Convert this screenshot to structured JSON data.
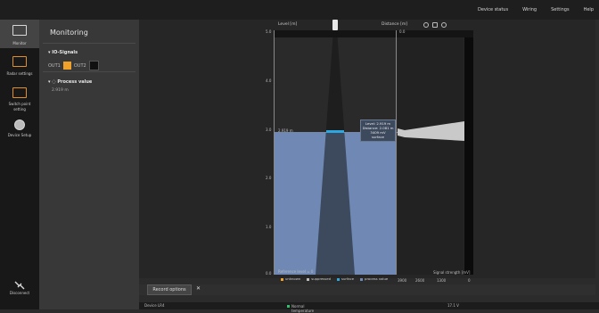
{
  "topmenu": [
    "Device status",
    "Wiring",
    "Settings",
    "Help"
  ],
  "nav": {
    "items": [
      {
        "label": "Monitor"
      },
      {
        "label": "Radar settings"
      },
      {
        "label": "Switch point setting"
      },
      {
        "label": "Device Setup"
      }
    ],
    "disconnect": "Disconnect"
  },
  "panel": {
    "title": "Monitoring",
    "io_section": "IO-Signals",
    "io": [
      {
        "label": "OUT1",
        "color": "#f0a12a"
      },
      {
        "label": "OUT2",
        "color": "#111111"
      }
    ],
    "pv_section": "Process value",
    "pv_value": "2.919 m"
  },
  "chart": {
    "left_axis_label": "Level [m]",
    "right_axis_label": "Distance [m]",
    "left_ticks": [
      "5.0",
      "4.0",
      "3.0",
      "2.0",
      "1.0",
      "0.0"
    ],
    "right_ticks": [
      "0.0",
      "1.0",
      "2.0",
      "3.0",
      "4.0"
    ],
    "signal_ticks": [
      "3900",
      "2600",
      "1300",
      "0"
    ],
    "signal_axis_label": "Signal strength [mV]",
    "level_marker": "2.919 m",
    "reference_label": "Reference level = 0",
    "tooltip": {
      "level": "Level: 2.919 m",
      "distance": "Distance: 2.081 m",
      "mv": "3409 mV",
      "type": "surface"
    },
    "legend": [
      {
        "label": "unknown",
        "color": "#f0a12a"
      },
      {
        "label": "suppressed",
        "color": "#bbbbbb"
      },
      {
        "label": "surface",
        "color": "#2da7e0"
      },
      {
        "label": "process value",
        "color": "#6f89b4"
      }
    ],
    "colors": {
      "fill": "#6f89b4",
      "surface": "#2da7e0"
    }
  },
  "bottom": {
    "record_button": "Record options",
    "close_icon": "close-icon"
  },
  "status": {
    "device": "Device LR4",
    "temp": "Normal temperature",
    "voltage": "17.1 V"
  },
  "icons": [
    "monitor-icon",
    "radar-settings-icon",
    "switch-point-icon",
    "device-setup-icon",
    "disconnect-icon",
    "zoom-in-icon",
    "zoom-out-icon",
    "zoom-reset-icon"
  ]
}
